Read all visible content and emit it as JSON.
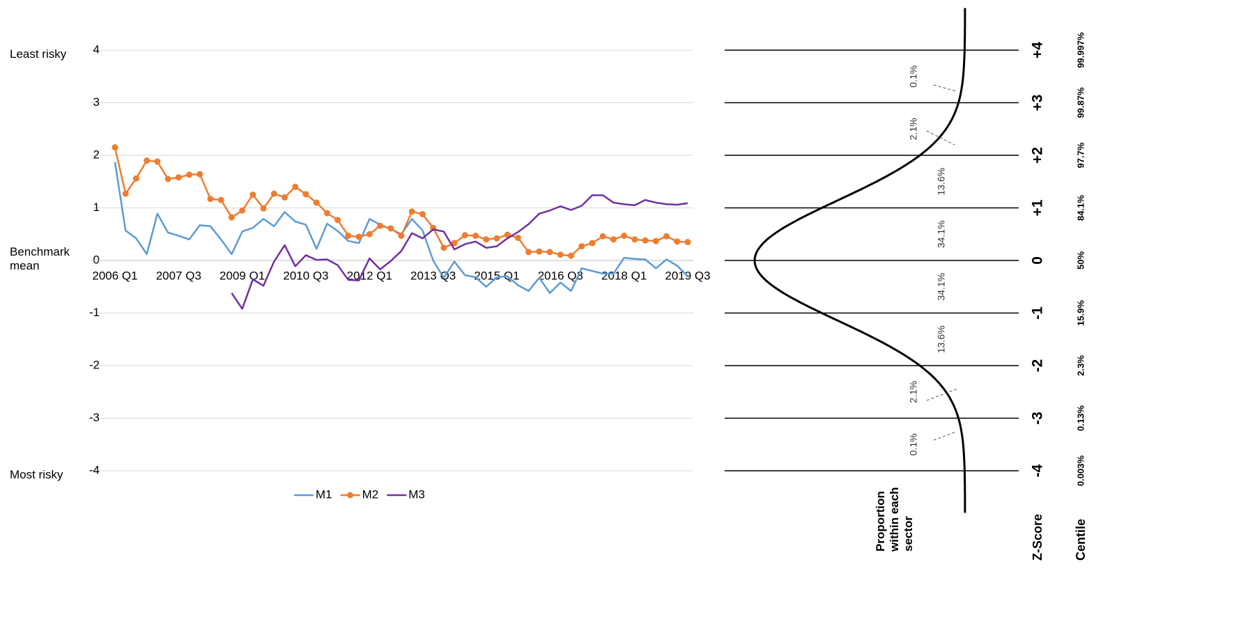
{
  "chart_data": [
    {
      "type": "line",
      "annotations": [
        "Least risky",
        "Benchmark mean",
        "Most risky"
      ],
      "categories": [
        "2006 Q1",
        null,
        null,
        null,
        null,
        null,
        "2007 Q3",
        null,
        null,
        null,
        null,
        null,
        "2009 Q1",
        null,
        null,
        null,
        null,
        null,
        "2010 Q3",
        null,
        null,
        null,
        null,
        null,
        "2012 Q1",
        null,
        null,
        null,
        null,
        null,
        "2013 Q3",
        null,
        null,
        null,
        null,
        null,
        "2015 Q1",
        null,
        null,
        null,
        null,
        null,
        "2016 Q3",
        null,
        null,
        null,
        null,
        null,
        "2018 Q1",
        null,
        null,
        null,
        null,
        null,
        "2019 Q3"
      ],
      "series": [
        {
          "name": "M1",
          "color": "#5b9bd5",
          "markers": false,
          "values": [
            1.87,
            0.57,
            0.42,
            0.12,
            0.89,
            0.53,
            0.47,
            0.4,
            0.67,
            0.65,
            0.4,
            0.12,
            0.55,
            0.62,
            0.79,
            0.65,
            0.92,
            0.74,
            0.68,
            0.22,
            0.7,
            0.56,
            0.37,
            0.33,
            0.79,
            0.68,
            0.6,
            0.5,
            0.79,
            0.57,
            0,
            -0.33,
            -0.02,
            -0.28,
            -0.32,
            -0.5,
            -0.32,
            -0.3,
            -0.47,
            -0.58,
            -0.33,
            -0.62,
            -0.42,
            -0.58,
            -0.15,
            -0.2,
            -0.25,
            -0.25,
            0.05,
            0.03,
            0.02,
            -0.15,
            0.02,
            -0.1,
            -0.3
          ]
        },
        {
          "name": "M2",
          "color": "#ed7d31",
          "markers": true,
          "values": [
            2.15,
            1.27,
            1.56,
            1.9,
            1.88,
            1.55,
            1.58,
            1.63,
            1.64,
            1.17,
            1.15,
            0.82,
            0.95,
            1.25,
            0.99,
            1.27,
            1.2,
            1.4,
            1.26,
            1.1,
            0.9,
            0.77,
            0.47,
            0.45,
            0.5,
            0.66,
            0.61,
            0.47,
            0.93,
            0.88,
            0.62,
            0.24,
            0.33,
            0.48,
            0.47,
            0.4,
            0.42,
            0.49,
            0.43,
            0.16,
            0.17,
            0.16,
            0.11,
            0.09,
            0.27,
            0.33,
            0.46,
            0.4,
            0.47,
            0.4,
            0.38,
            0.37,
            0.46,
            0.36,
            0.35
          ]
        },
        {
          "name": "M3",
          "color": "#7030a0",
          "markers": false,
          "values": [
            null,
            null,
            null,
            null,
            null,
            null,
            null,
            null,
            null,
            null,
            null,
            -0.62,
            -0.92,
            -0.36,
            -0.48,
            -0.02,
            0.29,
            -0.11,
            0.1,
            0.01,
            0.02,
            -0.09,
            -0.37,
            -0.38,
            0.04,
            -0.17,
            -0.01,
            0.18,
            0.52,
            0.42,
            0.59,
            0.55,
            0.21,
            0.31,
            0.36,
            0.24,
            0.27,
            0.42,
            0.54,
            0.69,
            0.89,
            0.95,
            1.03,
            0.96,
            1.04,
            1.24,
            1.24,
            1.1,
            1.07,
            1.05,
            1.15,
            1.1,
            1.07,
            1.06,
            1.09
          ]
        }
      ],
      "ylim": [
        -4,
        4
      ],
      "yticks": [
        -4,
        -3,
        -2,
        -1,
        0,
        1,
        2,
        3,
        4
      ],
      "grid": true,
      "legend": "bottom"
    },
    {
      "type": "normal-curve",
      "zlim": [
        -4,
        4
      ],
      "zticks": [
        {
          "value": 4,
          "label": "+4"
        },
        {
          "value": 3,
          "label": "+3"
        },
        {
          "value": 2,
          "label": "+2"
        },
        {
          "value": 1,
          "label": "+1"
        },
        0,
        -1,
        -2,
        -3,
        -4
      ],
      "centiles": [
        "99.997%",
        "99.87%",
        "97.7%",
        "84.1%",
        "50%",
        "15.9%",
        "2.3%",
        "0.13%",
        "0.003%"
      ],
      "sectors": [
        "0.1%",
        "2.1%",
        "13.6%",
        "34.1%",
        "34.1%",
        "13.6%",
        "2.1%",
        "0.1%"
      ],
      "proportion_label": "Proportion within each sector",
      "z_label": "Z-Score",
      "centile_label": "Centile"
    }
  ]
}
